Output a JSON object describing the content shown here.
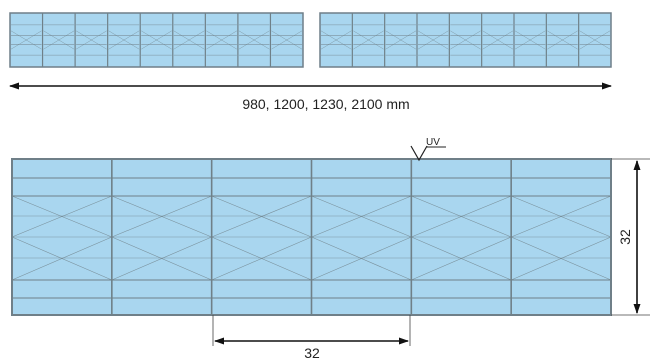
{
  "colors": {
    "panel_fill": "#a9d6ef",
    "panel_stroke": "#6f7f88",
    "cell_line": "#6f8088",
    "arrow": "#111111"
  },
  "top_view": {
    "left_segment_cells": 9,
    "right_segment_cells": 9,
    "length_label": "980, 1200, 1230, 2100 mm"
  },
  "section_view": {
    "uv_label": "UV",
    "thickness_label": "32",
    "cell_width_label": "32",
    "columns": 6
  }
}
